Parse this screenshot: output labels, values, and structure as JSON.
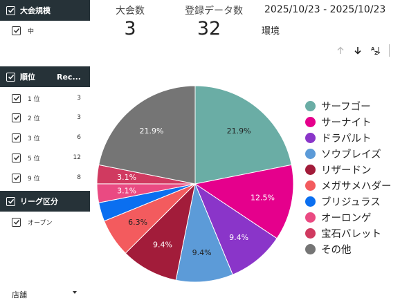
{
  "filters": {
    "size": {
      "title": "大会規模",
      "items": [
        {
          "label": "中"
        }
      ]
    },
    "rank": {
      "title": "順位",
      "col2": "Rec...",
      "items": [
        {
          "label": "1 位",
          "count": "3"
        },
        {
          "label": "2 位",
          "count": "3"
        },
        {
          "label": "3 位",
          "count": "6"
        },
        {
          "label": "5 位",
          "count": "12"
        },
        {
          "label": "9 位",
          "count": "8"
        }
      ]
    },
    "league": {
      "title": "リーグ区分",
      "items": [
        {
          "label": "オープン"
        }
      ]
    },
    "store": {
      "label": "店舗"
    }
  },
  "kpis": [
    {
      "label": "大会数",
      "value": "3"
    },
    {
      "label": "登録データ数",
      "value": "32"
    }
  ],
  "date_range": "2025/10/23 - 2025/10/23",
  "table_header": "環境",
  "chart_data": {
    "type": "pie",
    "slices": [
      {
        "name": "サーフゴー",
        "value": 21.9,
        "label": "21.9%",
        "color": "#6aada5"
      },
      {
        "name": "サーナイト",
        "value": 12.5,
        "label": "12.5%",
        "color": "#e5008c"
      },
      {
        "name": "ドラパルト",
        "value": 9.4,
        "label": "9.4%",
        "color": "#8a35c9"
      },
      {
        "name": "ソウブレイズ",
        "value": 9.4,
        "label": "9.4%",
        "color": "#5c9bd8"
      },
      {
        "name": "リザードン",
        "value": 9.4,
        "label": "9.4%",
        "color": "#a21c3a"
      },
      {
        "name": "メガサメハダー",
        "value": 6.3,
        "label": "6.3%",
        "color": "#f35b5e"
      },
      {
        "name": "ブリジュラス",
        "value": 3.1,
        "label": "",
        "color": "#0b6ff0"
      },
      {
        "name": "オーロンゲ",
        "value": 3.1,
        "label": "3.1%",
        "color": "#ea4a82"
      },
      {
        "name": "宝石バレット",
        "value": 3.1,
        "label": "3.1%",
        "color": "#d03a60"
      },
      {
        "name": "その他",
        "value": 21.9,
        "label": "21.9%",
        "color": "#757575"
      }
    ]
  }
}
